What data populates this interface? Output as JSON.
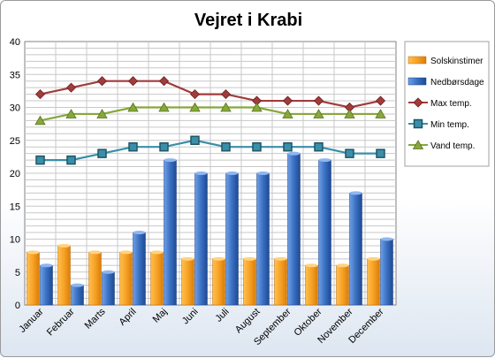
{
  "chart_data": {
    "type": "bar",
    "title": "Vejret i Krabi",
    "categories": [
      "Januar",
      "Februar",
      "Marts",
      "April",
      "Maj",
      "Juni",
      "Juli",
      "August",
      "September",
      "Oktober",
      "November",
      "December"
    ],
    "series": [
      {
        "name": "Solskinstimer",
        "type": "bar",
        "color": "#f39a1e",
        "values": [
          8,
          9,
          8,
          8,
          8,
          7,
          7,
          7,
          7,
          6,
          6,
          7
        ]
      },
      {
        "name": "Nedbørsdage",
        "type": "bar",
        "color": "#3b72c4",
        "values": [
          6,
          3,
          5,
          11,
          22,
          20,
          20,
          20,
          23,
          22,
          17,
          10
        ]
      },
      {
        "name": "Max temp.",
        "type": "line",
        "color": "#a23b3b",
        "marker": "diamond",
        "values": [
          32,
          33,
          34,
          34,
          34,
          32,
          32,
          31,
          31,
          31,
          30,
          31
        ]
      },
      {
        "name": "Min temp.",
        "type": "line",
        "color": "#3a8fa8",
        "marker": "square",
        "values": [
          22,
          22,
          23,
          24,
          24,
          25,
          24,
          24,
          24,
          24,
          23,
          23
        ]
      },
      {
        "name": "Vand temp.",
        "type": "line",
        "color": "#86a83a",
        "marker": "triangle",
        "values": [
          28,
          29,
          29,
          30,
          30,
          30,
          30,
          30,
          29,
          29,
          29,
          29
        ]
      }
    ],
    "ylim": [
      0,
      40
    ],
    "yticks": [
      0,
      5,
      10,
      15,
      20,
      25,
      30,
      35,
      40
    ],
    "grid": true,
    "legend_position": "right"
  }
}
